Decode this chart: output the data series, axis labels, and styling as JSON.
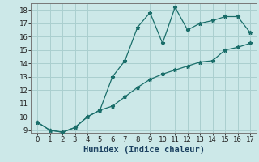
{
  "xlabel": "Humidex (Indice chaleur)",
  "xlim": [
    -0.5,
    17.5
  ],
  "ylim": [
    8.8,
    18.5
  ],
  "xticks": [
    0,
    1,
    2,
    3,
    4,
    5,
    6,
    7,
    8,
    9,
    10,
    11,
    12,
    13,
    14,
    15,
    16,
    17
  ],
  "yticks": [
    9,
    10,
    11,
    12,
    13,
    14,
    15,
    16,
    17,
    18
  ],
  "bg_color": "#cce8e8",
  "line_color": "#1a6e6a",
  "grid_color": "#aacfcf",
  "line1_x": [
    0,
    1,
    2,
    3,
    4,
    5,
    6,
    7,
    8,
    9,
    10,
    11,
    12,
    13,
    14,
    15,
    16,
    17
  ],
  "line1_y": [
    9.6,
    9.0,
    8.85,
    9.2,
    10.0,
    10.5,
    13.0,
    14.2,
    16.7,
    17.8,
    15.5,
    18.2,
    16.5,
    17.0,
    17.2,
    17.5,
    17.5,
    16.3
  ],
  "line2_x": [
    0,
    1,
    2,
    3,
    4,
    5,
    6,
    7,
    8,
    9,
    10,
    11,
    12,
    13,
    14,
    15,
    16,
    17
  ],
  "line2_y": [
    9.6,
    9.0,
    8.85,
    9.2,
    10.0,
    10.5,
    10.8,
    11.5,
    12.2,
    12.8,
    13.2,
    13.5,
    13.8,
    14.1,
    14.2,
    15.0,
    15.2,
    15.5
  ],
  "tick_fontsize": 6.5,
  "xlabel_fontsize": 7.5
}
